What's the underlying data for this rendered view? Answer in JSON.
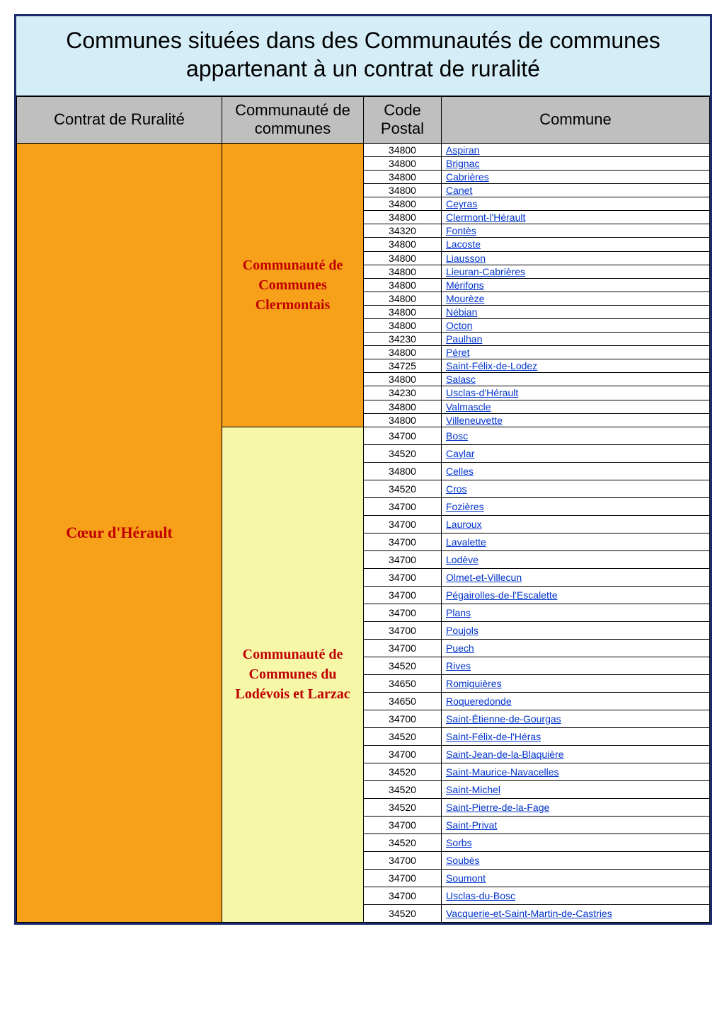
{
  "title": "Communes situées dans des Communautés de communes appartenant à un contrat de ruralité",
  "headers": {
    "contrat": "Contrat de Ruralité",
    "communaute": "Communauté de communes",
    "postal": "Code Postal",
    "commune": "Commune"
  },
  "contrat_label": "Cœur d'Hérault",
  "group1_label": "Communauté de Communes Clermontais",
  "group2_label": "Communauté de Communes du Lodévois et Larzac",
  "colors": {
    "border": "#1a2a6c",
    "title_bg": "#d4edf7",
    "header_bg": "#bfbfbf",
    "orange": "#f7a11b",
    "yellow": "#f7f7a8",
    "red_text": "#c00000",
    "link": "#0033cc"
  },
  "group1": [
    {
      "postal": "34800",
      "commune": "Aspiran"
    },
    {
      "postal": "34800",
      "commune": "Brignac"
    },
    {
      "postal": "34800",
      "commune": "Cabrières"
    },
    {
      "postal": "34800",
      "commune": "Canet"
    },
    {
      "postal": "34800",
      "commune": "Ceyras"
    },
    {
      "postal": "34800",
      "commune": "Clermont-l'Hérault"
    },
    {
      "postal": "34320",
      "commune": "Fontès"
    },
    {
      "postal": "34800",
      "commune": "Lacoste"
    },
    {
      "postal": "34800",
      "commune": "Liausson"
    },
    {
      "postal": "34800",
      "commune": "Lieuran-Cabrières"
    },
    {
      "postal": "34800",
      "commune": "Mérifons"
    },
    {
      "postal": "34800",
      "commune": "Mourèze"
    },
    {
      "postal": "34800",
      "commune": "Nébian"
    },
    {
      "postal": "34800",
      "commune": "Octon"
    },
    {
      "postal": "34230",
      "commune": "Paulhan"
    },
    {
      "postal": "34800",
      "commune": "Péret"
    },
    {
      "postal": "34725",
      "commune": "Saint-Félix-de-Lodez"
    },
    {
      "postal": "34800",
      "commune": "Salasc"
    },
    {
      "postal": "34230",
      "commune": "Usclas-d'Hérault"
    },
    {
      "postal": "34800",
      "commune": "Valmascle"
    },
    {
      "postal": "34800",
      "commune": "Villeneuvette"
    }
  ],
  "group2": [
    {
      "postal": "34700",
      "commune": "Bosc"
    },
    {
      "postal": "34520",
      "commune": "Caylar"
    },
    {
      "postal": "34800",
      "commune": "Celles"
    },
    {
      "postal": "34520",
      "commune": "Cros"
    },
    {
      "postal": "34700",
      "commune": "Fozières"
    },
    {
      "postal": "34700",
      "commune": "Lauroux"
    },
    {
      "postal": "34700",
      "commune": "Lavalette"
    },
    {
      "postal": "34700",
      "commune": "Lodève"
    },
    {
      "postal": "34700",
      "commune": "Olmet-et-Villecun"
    },
    {
      "postal": "34700",
      "commune": "Pégairolles-de-l'Escalette"
    },
    {
      "postal": "34700",
      "commune": "Plans"
    },
    {
      "postal": "34700",
      "commune": "Poujols"
    },
    {
      "postal": "34700",
      "commune": "Puech"
    },
    {
      "postal": "34520",
      "commune": "Rives"
    },
    {
      "postal": "34650",
      "commune": "Romiguières"
    },
    {
      "postal": "34650",
      "commune": "Roqueredonde"
    },
    {
      "postal": "34700",
      "commune": "Saint-Étienne-de-Gourgas"
    },
    {
      "postal": "34520",
      "commune": "Saint-Félix-de-l'Héras"
    },
    {
      "postal": "34700",
      "commune": "Saint-Jean-de-la-Blaquière"
    },
    {
      "postal": "34520",
      "commune": "Saint-Maurice-Navacelles"
    },
    {
      "postal": "34520",
      "commune": "Saint-Michel"
    },
    {
      "postal": "34520",
      "commune": "Saint-Pierre-de-la-Fage"
    },
    {
      "postal": "34700",
      "commune": "Saint-Privat"
    },
    {
      "postal": "34520",
      "commune": "Sorbs"
    },
    {
      "postal": "34700",
      "commune": "Soubès"
    },
    {
      "postal": "34700",
      "commune": "Soumont"
    },
    {
      "postal": "34700",
      "commune": "Usclas-du-Bosc"
    },
    {
      "postal": "34520",
      "commune": "Vacquerie-et-Saint-Martin-de-Castries"
    }
  ]
}
